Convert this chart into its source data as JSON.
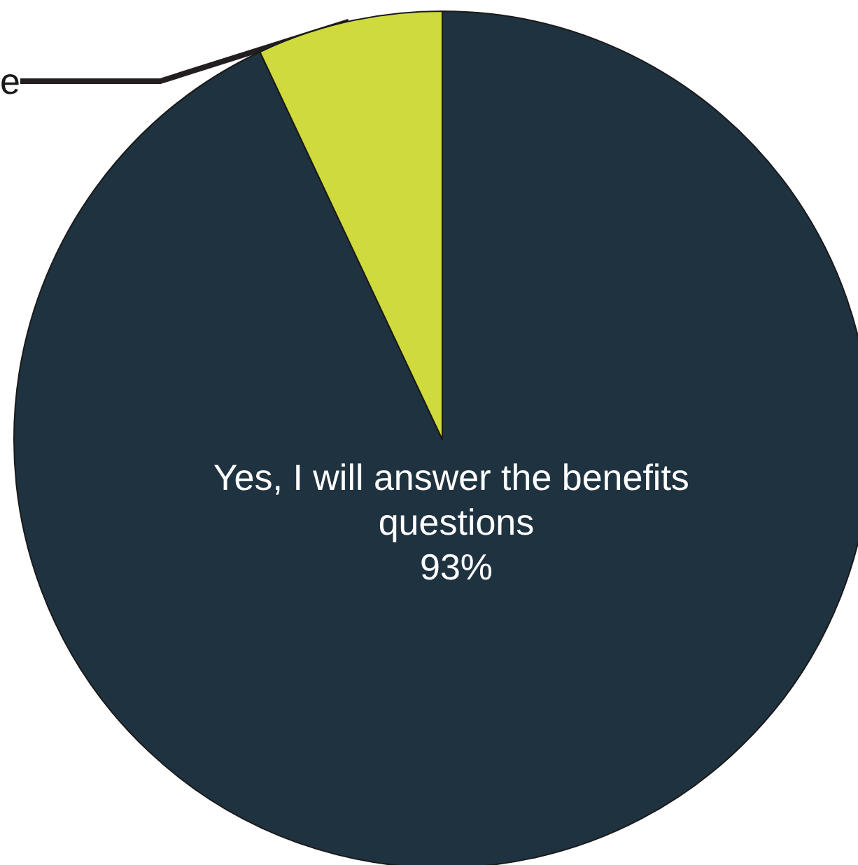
{
  "chart_data": {
    "type": "pie",
    "categories": [
      "Yes, I will answer the benefits questions",
      "e"
    ],
    "values": [
      93,
      7
    ],
    "colors": [
      "#1f3240",
      "#cfdb3c"
    ],
    "value_labels": [
      "93%",
      null
    ],
    "legend": false
  }
}
